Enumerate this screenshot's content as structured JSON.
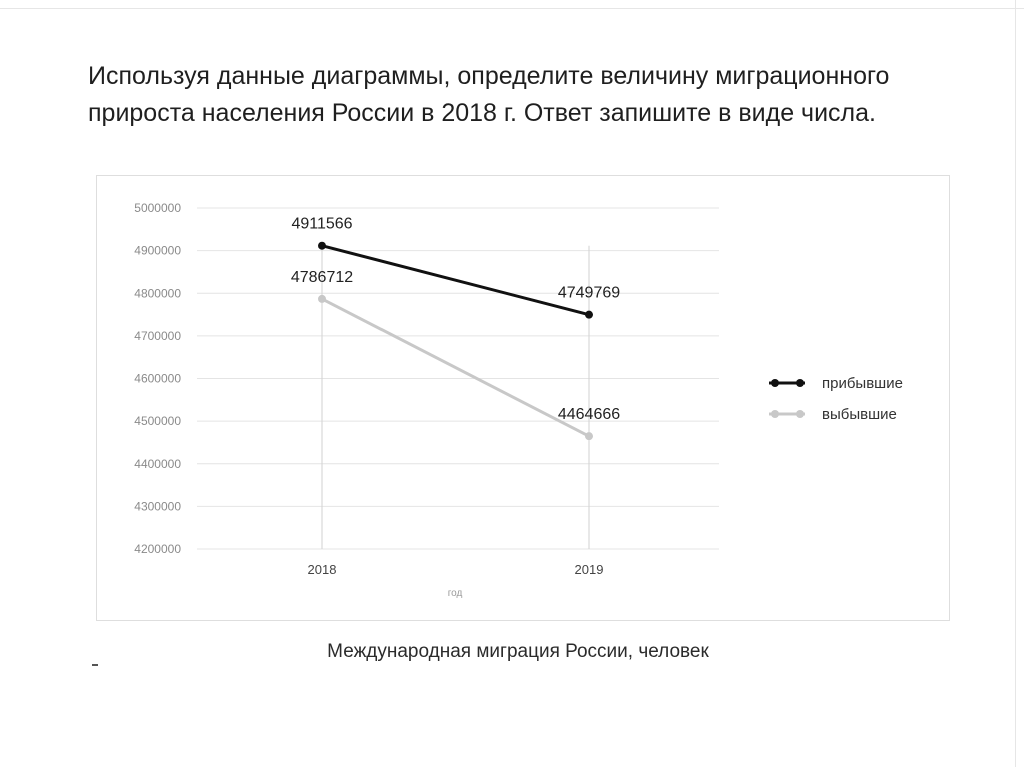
{
  "question": "Используя данные диаграммы, определите величину миграционного прироста населения России в 2018 г. Ответ запишите в виде числа.",
  "caption": "Международная миграция России, человек",
  "colors": {
    "arrived": "#111111",
    "departed": "#c8c8c8",
    "grid": "#e4e4e4",
    "axis_text": "#8a8a8a"
  },
  "chart_data": {
    "type": "line",
    "categories": [
      "2018",
      "2019"
    ],
    "series": [
      {
        "name": "прибывшие",
        "values": [
          4911566,
          4749769
        ],
        "labels": [
          "4911566",
          "4749769"
        ]
      },
      {
        "name": "выбывшие",
        "values": [
          4786712,
          4464666
        ],
        "labels": [
          "4786712",
          "4464666"
        ]
      }
    ],
    "xlabel": "год",
    "ylabel": "",
    "ylim": [
      4200000,
      5000000
    ],
    "yticks": [
      "5000000",
      "4900000",
      "4800000",
      "4700000",
      "4600000",
      "4500000",
      "4400000",
      "4300000",
      "4200000"
    ],
    "grid": true,
    "legend": "right"
  }
}
